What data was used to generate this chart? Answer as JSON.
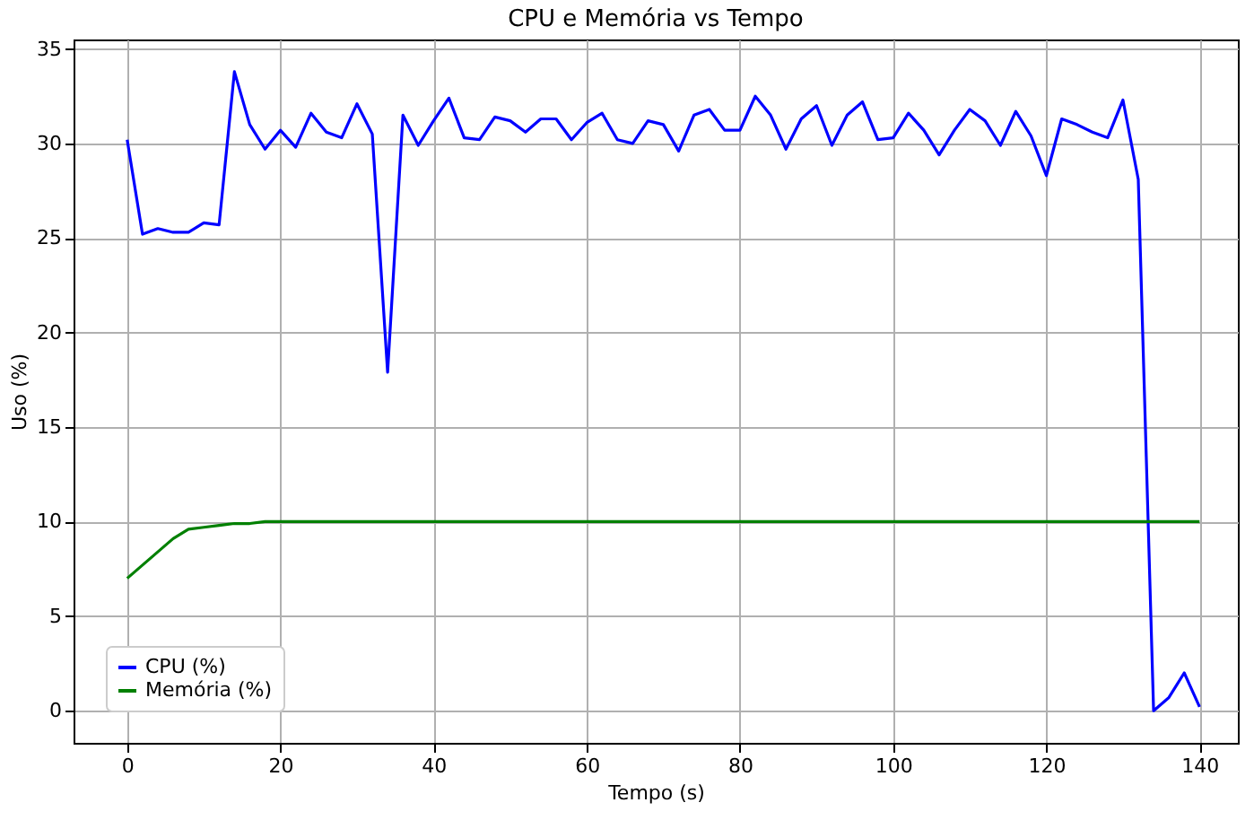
{
  "chart_data": {
    "type": "line",
    "title": "CPU e Memória vs Tempo",
    "xlabel": "Tempo (s)",
    "ylabel": "Uso (%)",
    "x": [
      0,
      2,
      4,
      6,
      8,
      10,
      12,
      14,
      16,
      18,
      20,
      22,
      24,
      26,
      28,
      30,
      32,
      34,
      36,
      38,
      40,
      42,
      44,
      46,
      48,
      50,
      52,
      54,
      56,
      58,
      60,
      62,
      64,
      66,
      68,
      70,
      72,
      74,
      76,
      78,
      80,
      82,
      84,
      86,
      88,
      90,
      92,
      94,
      96,
      98,
      100,
      102,
      104,
      106,
      108,
      110,
      112,
      114,
      116,
      118,
      120,
      122,
      124,
      126,
      128,
      130,
      132,
      134,
      136,
      138,
      140
    ],
    "series": [
      {
        "name": "CPU (%)",
        "color": "#0000ff",
        "values": [
          30.2,
          25.2,
          25.5,
          25.3,
          25.3,
          25.8,
          25.7,
          33.8,
          31.0,
          29.7,
          30.7,
          29.8,
          31.6,
          30.6,
          30.3,
          32.1,
          30.5,
          17.9,
          31.5,
          29.9,
          31.2,
          32.4,
          30.3,
          30.2,
          31.4,
          31.2,
          30.6,
          31.3,
          31.3,
          30.2,
          31.1,
          31.6,
          30.2,
          30.0,
          31.2,
          31.0,
          29.6,
          31.5,
          31.8,
          30.7,
          30.7,
          32.5,
          31.5,
          29.7,
          31.3,
          32.0,
          29.9,
          31.5,
          32.2,
          30.2,
          30.3,
          31.6,
          30.7,
          29.4,
          30.7,
          31.8,
          31.2,
          29.9,
          31.7,
          30.4,
          28.3,
          31.3,
          31.0,
          30.6,
          30.3,
          32.3,
          28.1,
          0.0,
          0.7,
          2.0,
          0.2
        ]
      },
      {
        "name": "Memória (%)",
        "color": "#008000",
        "values": [
          7.0,
          7.7,
          8.4,
          9.1,
          9.6,
          9.7,
          9.8,
          9.9,
          9.9,
          10,
          10,
          10,
          10,
          10,
          10,
          10,
          10,
          10,
          10,
          10,
          10,
          10,
          10,
          10,
          10,
          10,
          10,
          10,
          10,
          10,
          10,
          10,
          10,
          10,
          10,
          10,
          10,
          10,
          10,
          10,
          10,
          10,
          10,
          10,
          10,
          10,
          10,
          10,
          10,
          10,
          10,
          10,
          10,
          10,
          10,
          10,
          10,
          10,
          10,
          10,
          10,
          10,
          10,
          10,
          10,
          10,
          10,
          10,
          10,
          10,
          10
        ]
      }
    ],
    "xlim": [
      -7,
      145
    ],
    "ylim": [
      -1.7,
      35.5
    ],
    "xticks": [
      0,
      20,
      40,
      60,
      80,
      100,
      120,
      140
    ],
    "yticks": [
      0,
      5,
      10,
      15,
      20,
      25,
      30,
      35
    ],
    "grid": true,
    "legend": "bottom left",
    "marker": "none",
    "line_style": "solid"
  }
}
